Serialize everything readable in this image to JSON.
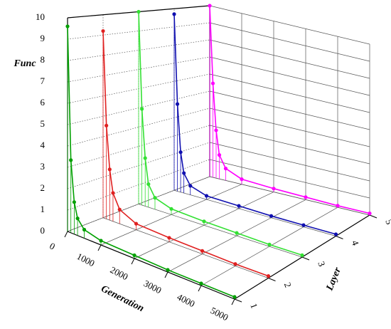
{
  "chart_data": {
    "type": "waterfall3d",
    "x_label": "Generation",
    "y_label": "Layer",
    "z_label": "Func",
    "x": [
      0,
      100,
      200,
      300,
      500,
      1000,
      2000,
      3000,
      4000,
      5000
    ],
    "series": [
      {
        "layer": 1,
        "color": "#00a000",
        "values": [
          9.6,
          3.4,
          1.5,
          0.8,
          0.4,
          0.2,
          0.15,
          0.1,
          0.1,
          0.1
        ]
      },
      {
        "layer": 2,
        "color": "#e02020",
        "values": [
          9.2,
          4.6,
          2.5,
          1.4,
          0.7,
          0.3,
          0.2,
          0.15,
          0.1,
          0.1
        ]
      },
      {
        "layer": 3,
        "color": "#33e033",
        "values": [
          10,
          5.0,
          2.5,
          1.2,
          0.6,
          0.3,
          0.2,
          0.15,
          0.1,
          0.1
        ]
      },
      {
        "layer": 4,
        "color": "#1010b0",
        "values": [
          9.7,
          4.8,
          2.2,
          1.1,
          0.5,
          0.2,
          0.15,
          0.1,
          0.1,
          0.1
        ]
      },
      {
        "layer": 5,
        "color": "#ff00ff",
        "values": [
          10,
          5.5,
          2.8,
          1.4,
          0.7,
          0.3,
          0.2,
          0.15,
          0.1,
          0.1
        ]
      }
    ],
    "xlim": [
      0,
      5000
    ],
    "xticks": [
      0,
      1000,
      2000,
      3000,
      4000,
      5000
    ],
    "ylim": [
      1,
      5
    ],
    "yticks": [
      1,
      2,
      3,
      4,
      5
    ],
    "zlim": [
      0,
      10
    ],
    "zticks": [
      0,
      1,
      2,
      3,
      4,
      5,
      6,
      7,
      8,
      9,
      10
    ],
    "grid": true
  }
}
